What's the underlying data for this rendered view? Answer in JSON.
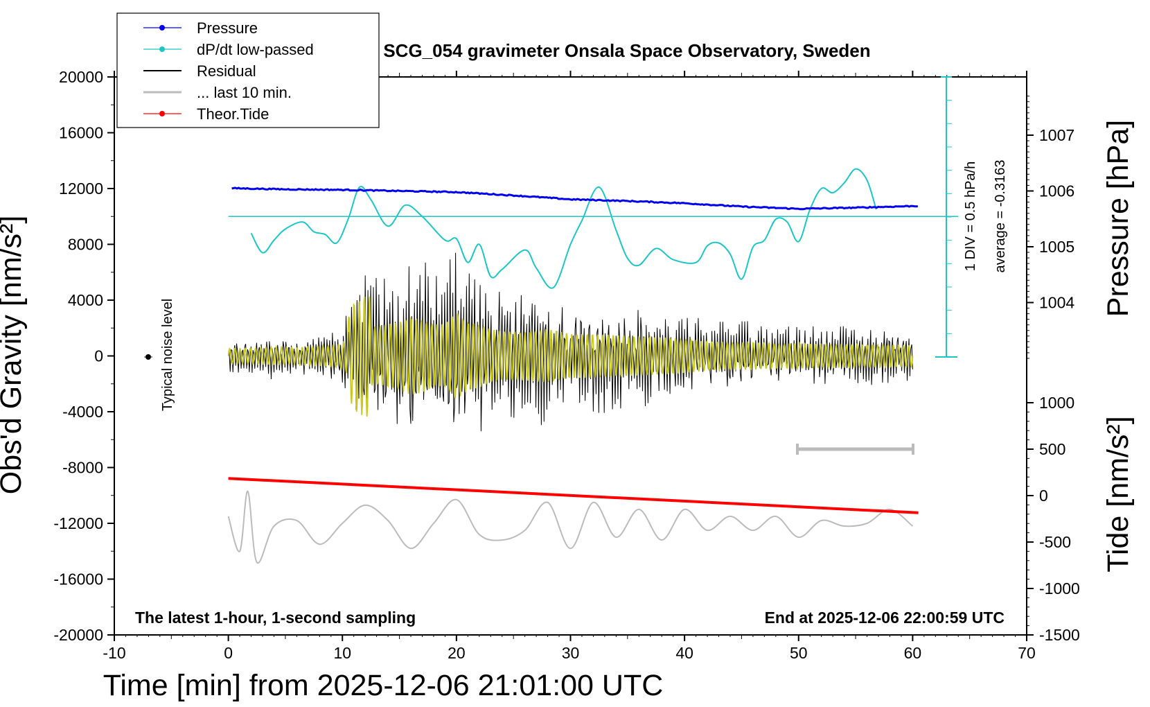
{
  "title": "SCG_054 gravimeter Onsala Space Observatory, Sweden",
  "legend": {
    "pressure": "Pressure",
    "dpdt": "dP/dt low-passed",
    "residual": "Residual",
    "last10": "... last 10 min.",
    "tide": "Theor.Tide"
  },
  "notes": {
    "bottom_left": "The latest 1-hour, 1-second sampling",
    "bottom_right": "End at 2025-12-06 22:00:59 UTC",
    "noise": "Typical noise level",
    "div_label": "1 DIV = 0.5 hPa/h",
    "average_label": "average = -0.3163"
  },
  "colors": {
    "pressure": "#0000ee",
    "dpdt": "#1cc6c6",
    "residual": "#000000",
    "filtered": "#c8c81e",
    "last10": "#bbbbbb",
    "tide": "#ff0000"
  },
  "chart_data": {
    "type": "line",
    "title": "SCG_054 gravimeter Onsala Space Observatory, Sweden",
    "xlabel": "Time [min] from 2025-12-06 21:01:00 UTC",
    "ylabel_left": "Obs'd Gravity [nm/s²]",
    "ylabel_right_top": "Pressure [hPa]",
    "ylabel_right_bottom": "Tide [nm/s²]",
    "xlim": [
      -10,
      70
    ],
    "ylim_left": [
      -20000,
      20000
    ],
    "x_ticks": [
      "-10",
      "0",
      "10",
      "20",
      "30",
      "40",
      "50",
      "60",
      "70"
    ],
    "y_ticks_left": [
      "20000",
      "16000",
      "12000",
      "8000",
      "4000",
      "0",
      "-4000",
      "-8000",
      "-12000",
      "-16000",
      "-20000"
    ],
    "y_ticks_pressure": [
      "1007",
      "1006",
      "1005",
      "1004"
    ],
    "y_ticks_tide": [
      "1000",
      "500",
      "0",
      "-500",
      "-1000",
      "-1500"
    ],
    "pressure_ticks_values": [
      1007,
      1006,
      1005,
      1004
    ],
    "tide_ticks_values": [
      1000,
      500,
      0,
      -500,
      -1000,
      -1500
    ],
    "series": [
      {
        "name": "Pressure",
        "unit": "hPa",
        "x": [
          0,
          5,
          10,
          15,
          20,
          25,
          30,
          35,
          40,
          45,
          50,
          55,
          60
        ],
        "values": [
          1006.05,
          1006.03,
          1006.02,
          1006.0,
          1005.98,
          1005.92,
          1005.85,
          1005.82,
          1005.78,
          1005.72,
          1005.68,
          1005.7,
          1005.73
        ]
      },
      {
        "name": "dP/dt low-passed",
        "unit": "nm/s² (plotted)",
        "x": [
          2,
          3,
          4,
          5,
          6.5,
          7.5,
          8.5,
          9.5,
          10.5,
          11.5,
          12.5,
          14,
          15.5,
          17,
          19,
          20,
          21,
          22,
          23,
          24,
          26,
          27,
          28.5,
          30,
          31,
          32.5,
          34,
          35,
          36,
          37.5,
          39,
          41,
          42,
          43,
          44,
          45,
          46,
          47,
          48,
          49,
          50,
          51,
          52,
          53,
          54,
          55,
          56,
          56.8
        ],
        "values": [
          8800,
          7400,
          8300,
          9100,
          9600,
          8900,
          8700,
          8100,
          9800,
          12100,
          11200,
          9300,
          10800,
          10000,
          8300,
          8400,
          6700,
          8000,
          5700,
          6200,
          7600,
          6300,
          4900,
          8000,
          9700,
          12100,
          9000,
          7000,
          6500,
          7700,
          6900,
          6700,
          7900,
          8100,
          7300,
          5500,
          7800,
          8300,
          9800,
          9600,
          8200,
          10500,
          12000,
          11700,
          12400,
          13400,
          12600,
          10500
        ]
      },
      {
        "name": "Residual",
        "unit": "nm/s²",
        "x": [
          0,
          2,
          4,
          6,
          8,
          10,
          11,
          12,
          13,
          14,
          15,
          16,
          17,
          18,
          19,
          20,
          21,
          22,
          23,
          24,
          26,
          28,
          30,
          32,
          34,
          36,
          38,
          40,
          42,
          44,
          46,
          48,
          50,
          52,
          54,
          56,
          58,
          60
        ],
        "values": [
          1500,
          1600,
          1800,
          1700,
          2000,
          2500,
          5500,
          6300,
          6000,
          6500,
          7000,
          8000,
          7500,
          6500,
          6500,
          9000,
          7000,
          6500,
          5500,
          5000,
          5000,
          5500,
          4500,
          4500,
          4200,
          4000,
          3800,
          3500,
          3000,
          2800,
          2800,
          2500,
          2600,
          2400,
          2400,
          2300,
          2300,
          2200
        ]
      },
      {
        "name": "... last 10 min.",
        "unit": "nm/s² (plotted)",
        "x": [
          0,
          1,
          1.7,
          2.5,
          4,
          6,
          8,
          10,
          12,
          14,
          16,
          18,
          20,
          22,
          24,
          26,
          28,
          30,
          32,
          34,
          36,
          38,
          40,
          42,
          44,
          46,
          48,
          50,
          52,
          54,
          56,
          58,
          60
        ],
        "values": [
          -11500,
          -14000,
          -9700,
          -14800,
          -12200,
          -11800,
          -13500,
          -12000,
          -10700,
          -11800,
          -13800,
          -12000,
          -10300,
          -12800,
          -13200,
          -12500,
          -10500,
          -13800,
          -10500,
          -13000,
          -11000,
          -13200,
          -11000,
          -12500,
          -11500,
          -12500,
          -11500,
          -13000,
          -11800,
          -12200,
          -12000,
          -11000,
          -12200
        ]
      },
      {
        "name": "Theor.Tide",
        "unit": "nm/s²",
        "x": [
          0,
          60.5
        ],
        "values": [
          185,
          -185
        ]
      }
    ],
    "legend_position": "top-left"
  }
}
